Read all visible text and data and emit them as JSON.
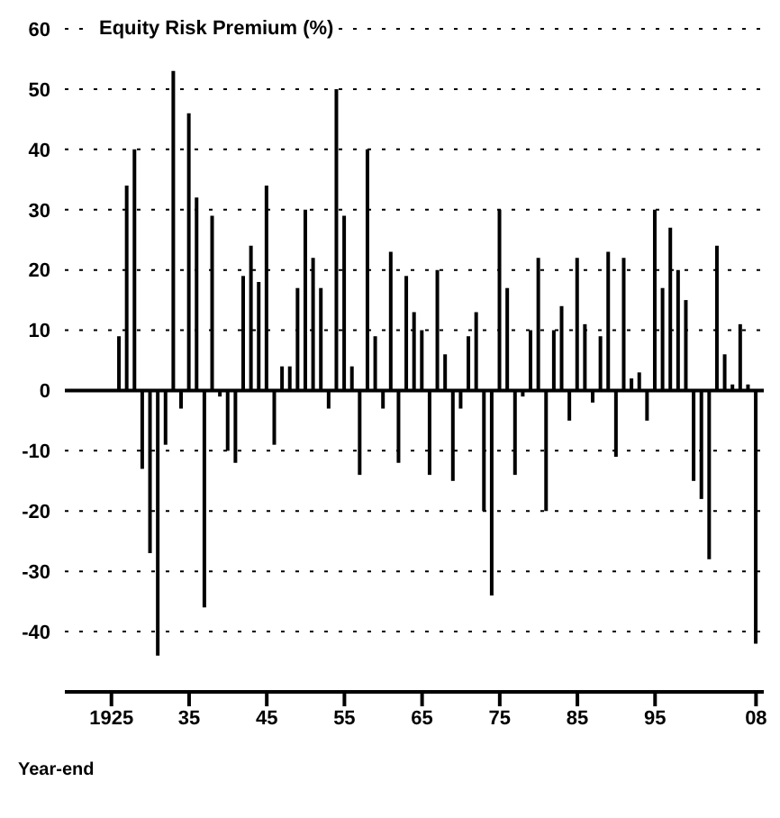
{
  "chart_data": {
    "type": "bar",
    "title": "Equity Risk Premium (%)",
    "xlabel": "Year-end",
    "x": [
      1926,
      1927,
      1928,
      1929,
      1930,
      1931,
      1932,
      1933,
      1934,
      1935,
      1936,
      1937,
      1938,
      1939,
      1940,
      1941,
      1942,
      1943,
      1944,
      1945,
      1946,
      1947,
      1948,
      1949,
      1950,
      1951,
      1952,
      1953,
      1954,
      1955,
      1956,
      1957,
      1958,
      1959,
      1960,
      1961,
      1962,
      1963,
      1964,
      1965,
      1966,
      1967,
      1968,
      1969,
      1970,
      1971,
      1972,
      1973,
      1974,
      1975,
      1976,
      1977,
      1978,
      1979,
      1980,
      1981,
      1982,
      1983,
      1984,
      1985,
      1986,
      1987,
      1988,
      1989,
      1990,
      1991,
      1992,
      1993,
      1994,
      1995,
      1996,
      1997,
      1998,
      1999,
      2000,
      2001,
      2002,
      2003,
      2004,
      2005,
      2006,
      2007,
      2008
    ],
    "values": [
      9,
      34,
      40,
      -13,
      -27,
      -44,
      -9,
      53,
      -3,
      46,
      32,
      -36,
      29,
      -1,
      -10,
      -12,
      19,
      24,
      18,
      34,
      -9,
      4,
      4,
      17,
      30,
      22,
      17,
      -3,
      50,
      29,
      4,
      -14,
      40,
      9,
      -3,
      23,
      -12,
      19,
      13,
      10,
      -14,
      20,
      6,
      -15,
      -3,
      9,
      13,
      -20,
      -34,
      30,
      17,
      -14,
      -1,
      10,
      22,
      -20,
      10,
      14,
      -5,
      22,
      11,
      -2,
      9,
      23,
      -11,
      22,
      2,
      3,
      -5,
      30,
      17,
      27,
      20,
      15,
      -15,
      -18,
      -28,
      24,
      6,
      1,
      11,
      1,
      -42
    ],
    "color": "#000000",
    "xlim": [
      1919,
      2009
    ],
    "xticks": [
      1925,
      {
        "value": 1935,
        "label": "35"
      },
      {
        "value": 1945,
        "label": "45"
      },
      {
        "value": 1955,
        "label": "55"
      },
      {
        "value": 1965,
        "label": "65"
      },
      {
        "value": 1975,
        "label": "75"
      },
      {
        "value": 1985,
        "label": "85"
      },
      {
        "value": 1995,
        "label": "95"
      },
      {
        "value": 2008,
        "label": "08"
      }
    ],
    "ylim": [
      -50,
      60
    ],
    "yticks": [
      60,
      50,
      40,
      30,
      20,
      10,
      0,
      -10,
      -20,
      -30,
      -40
    ],
    "grid": "y"
  }
}
